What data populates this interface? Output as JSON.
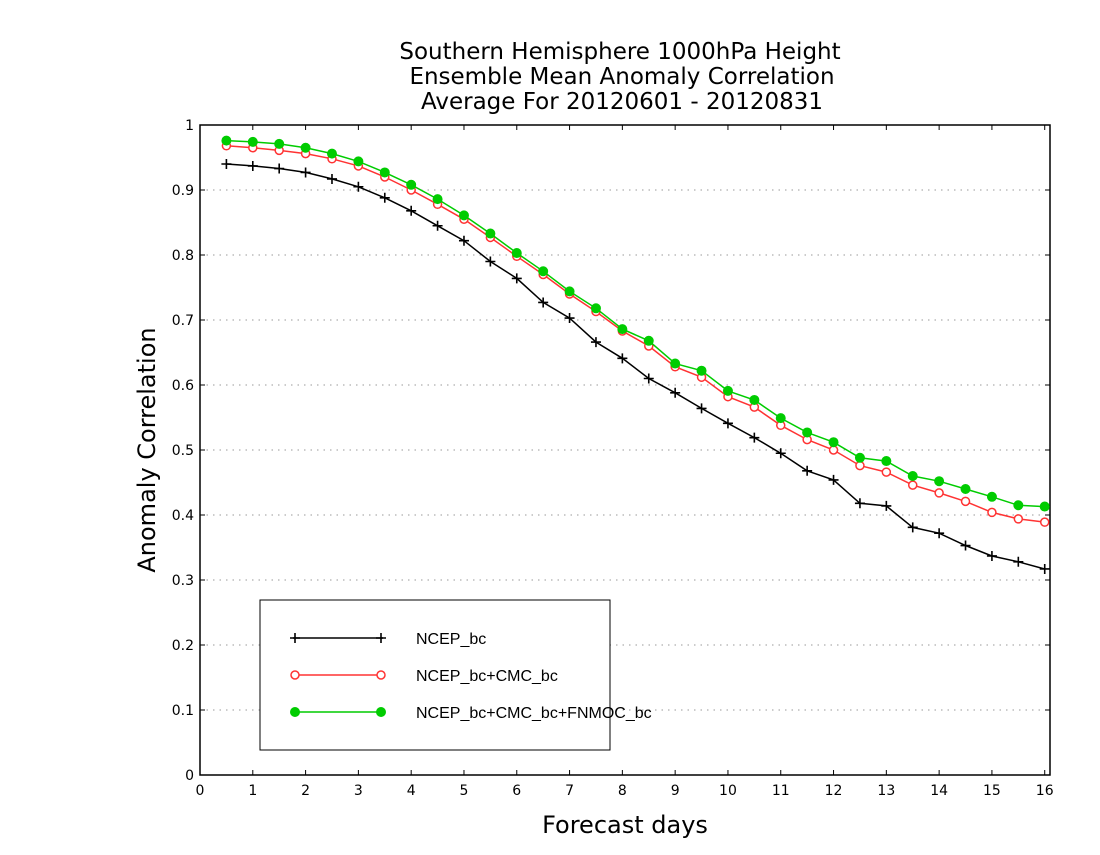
{
  "chart_data": {
    "type": "line",
    "title": [
      "Southern Hemisphere 1000hPa Height",
      "Ensemble Mean Anomaly Correlation",
      "Average For 20120601 - 20120831"
    ],
    "xlabel": "Forecast days",
    "ylabel": "Anomaly Correlation",
    "xlim": [
      0,
      16.1
    ],
    "ylim": [
      0,
      1
    ],
    "x_ticks": [
      "0",
      "1",
      "2",
      "3",
      "4",
      "5",
      "6",
      "7",
      "8",
      "9",
      "10",
      "11",
      "12",
      "13",
      "14",
      "15",
      "16"
    ],
    "y_ticks": [
      "0",
      "0.1",
      "0.2",
      "0.3",
      "0.4",
      "0.5",
      "0.6",
      "0.7",
      "0.8",
      "0.9",
      "1"
    ],
    "grid": "horizontal dotted",
    "legend_position": "lower-left",
    "x": [
      0.5,
      1,
      1.5,
      2,
      2.5,
      3,
      3.5,
      4,
      4.5,
      5,
      5.5,
      6,
      6.5,
      7,
      7.5,
      8,
      8.5,
      9,
      9.5,
      10,
      10.5,
      11,
      11.5,
      12,
      12.5,
      13,
      13.5,
      14,
      14.5,
      15,
      15.5,
      16
    ],
    "series": [
      {
        "name": "NCEP_bc",
        "color": "#000000",
        "marker": "plus",
        "values": [
          0.94,
          0.937,
          0.933,
          0.927,
          0.917,
          0.905,
          0.888,
          0.868,
          0.845,
          0.822,
          0.79,
          0.764,
          0.727,
          0.703,
          0.666,
          0.641,
          0.61,
          0.588,
          0.564,
          0.541,
          0.519,
          0.495,
          0.468,
          0.454,
          0.418,
          0.414,
          0.381,
          0.372,
          0.353,
          0.337,
          0.328,
          0.317
        ]
      },
      {
        "name": "NCEP_bc+CMC_bc",
        "color": "#ff3333",
        "marker": "open-circle",
        "values": [
          0.968,
          0.965,
          0.961,
          0.956,
          0.948,
          0.937,
          0.92,
          0.9,
          0.878,
          0.855,
          0.827,
          0.798,
          0.77,
          0.74,
          0.713,
          0.683,
          0.66,
          0.628,
          0.612,
          0.582,
          0.566,
          0.538,
          0.516,
          0.5,
          0.476,
          0.466,
          0.446,
          0.434,
          0.421,
          0.404,
          0.394,
          0.389
        ]
      },
      {
        "name": "NCEP_bc+CMC_bc+FNMOC_bc",
        "color": "#00cc00",
        "marker": "filled-circle",
        "values": [
          0.976,
          0.974,
          0.971,
          0.965,
          0.956,
          0.944,
          0.927,
          0.908,
          0.886,
          0.861,
          0.833,
          0.803,
          0.775,
          0.744,
          0.718,
          0.686,
          0.668,
          0.633,
          0.622,
          0.591,
          0.577,
          0.549,
          0.527,
          0.512,
          0.488,
          0.483,
          0.46,
          0.452,
          0.44,
          0.428,
          0.415,
          0.413
        ]
      }
    ]
  }
}
